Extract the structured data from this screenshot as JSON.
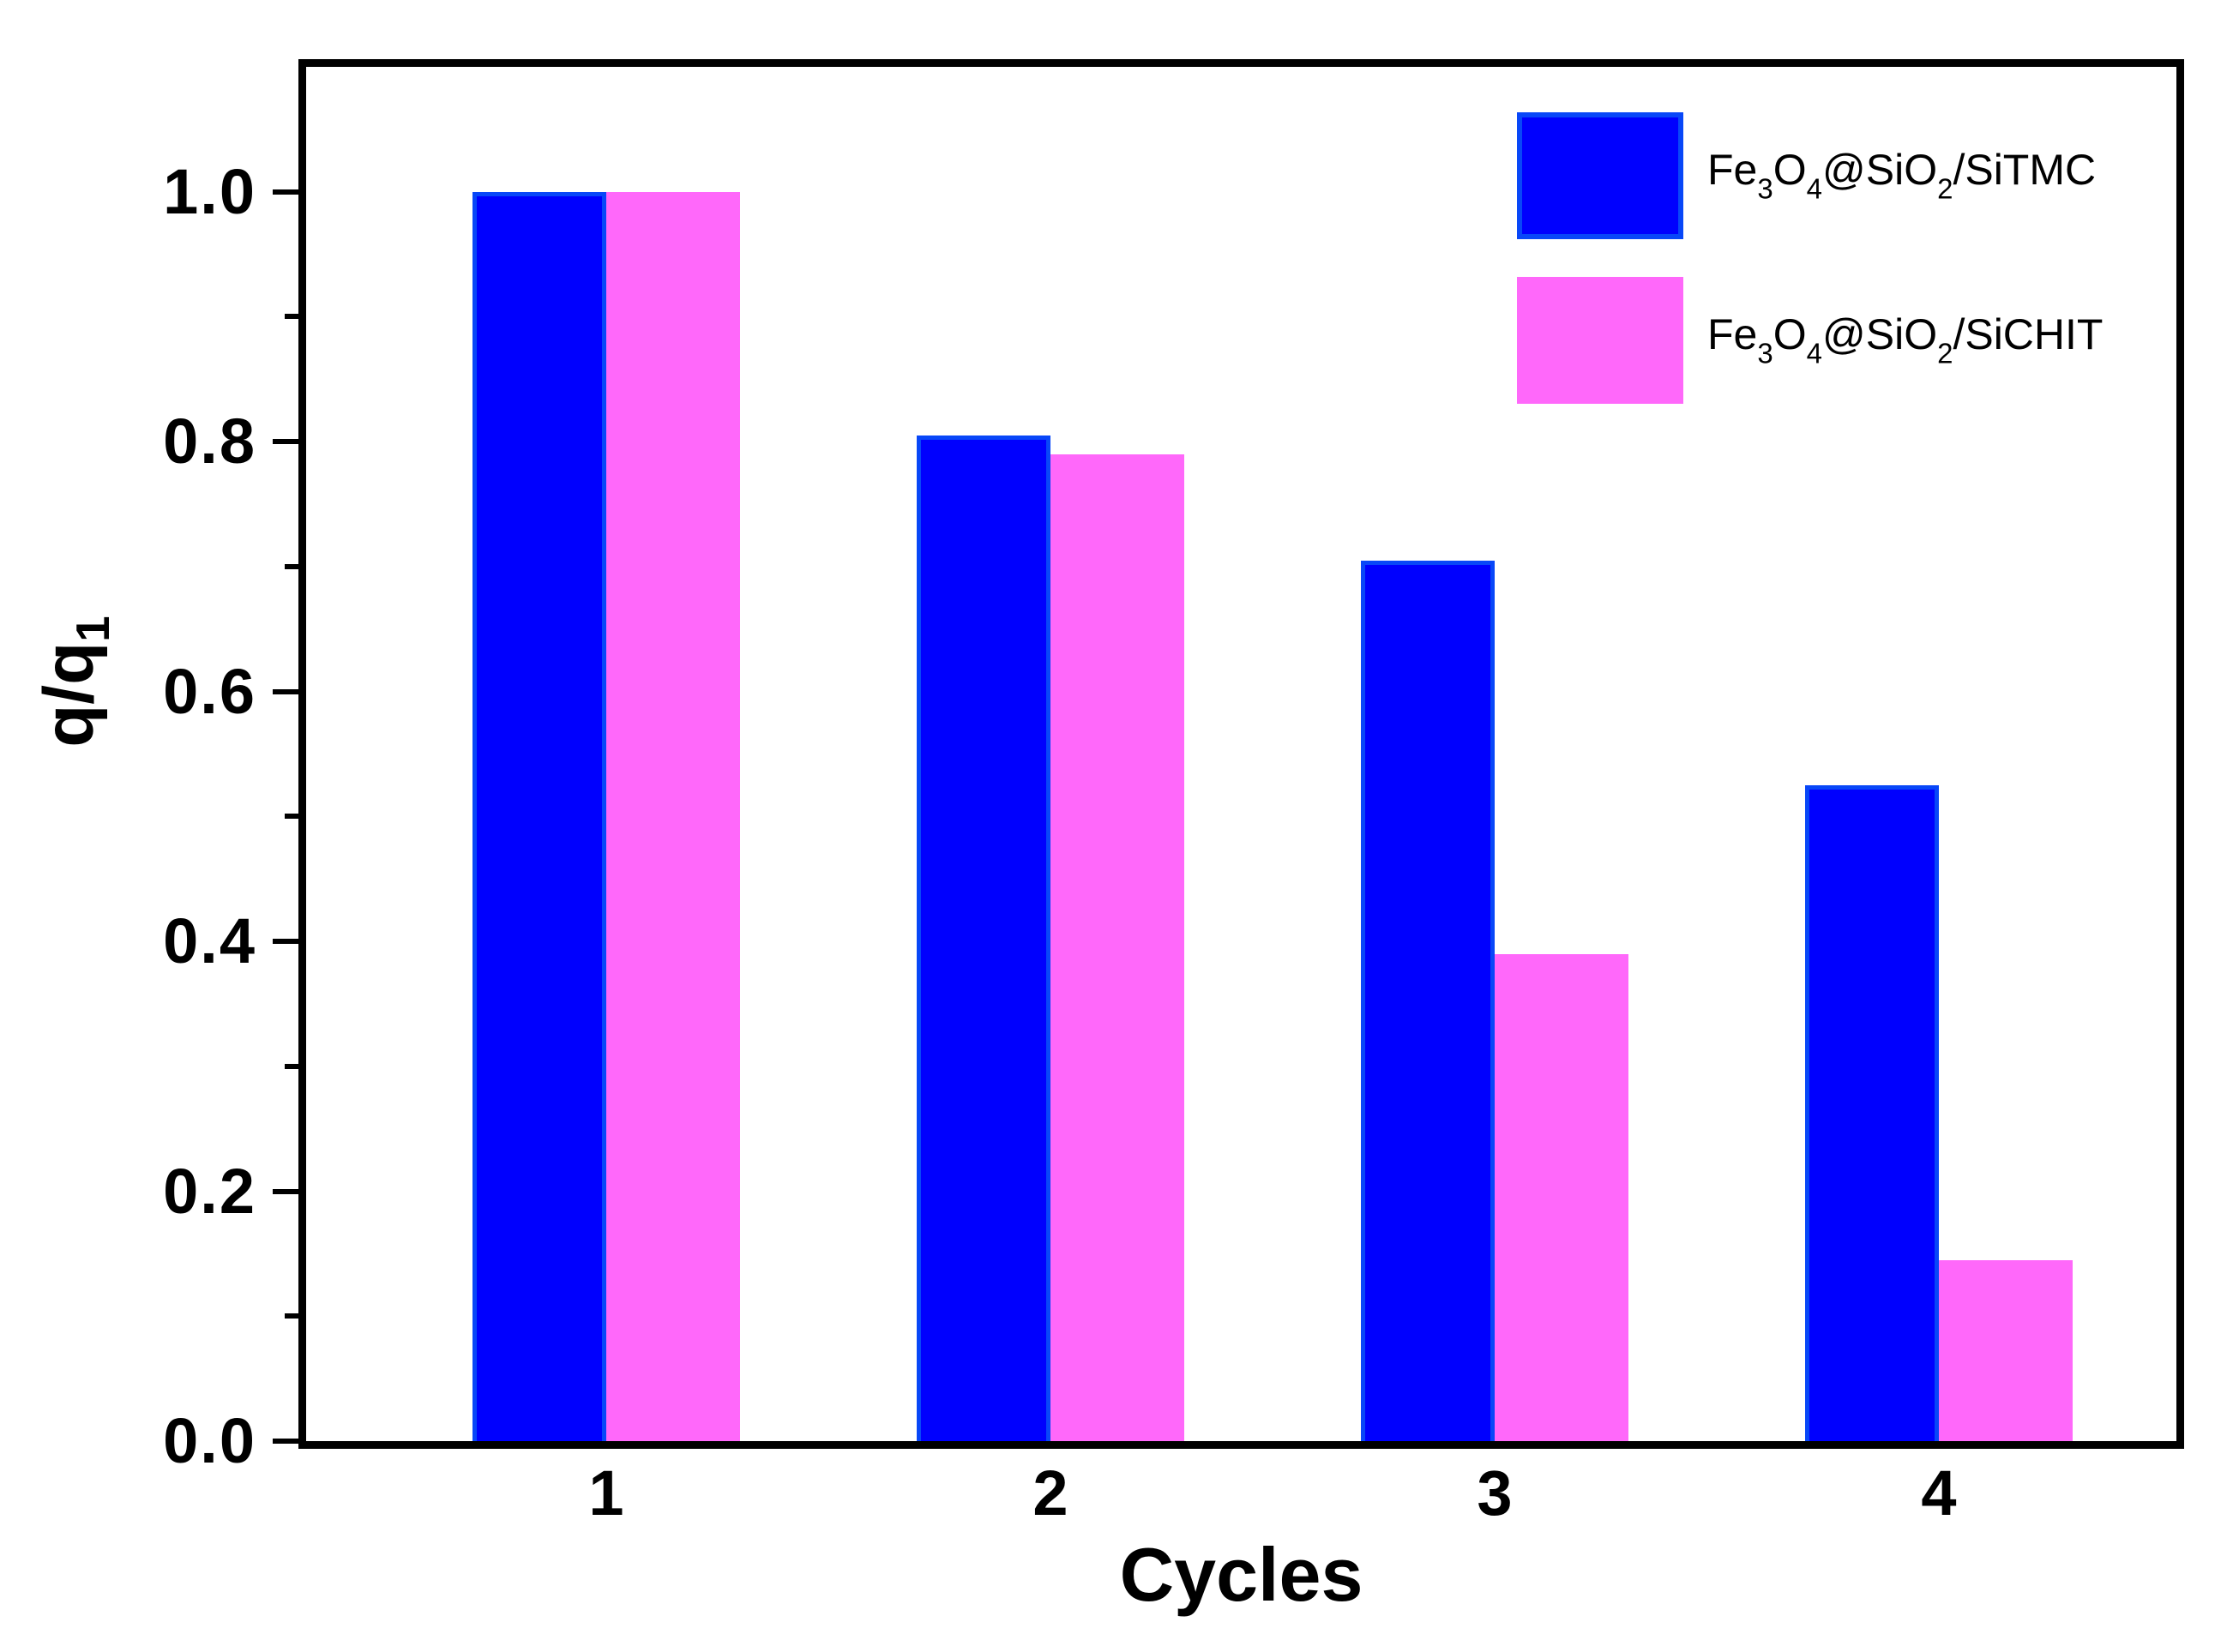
{
  "chart_data": {
    "type": "bar",
    "title": "",
    "xlabel": "Cycles",
    "ylabel": "q/q1",
    "ylabel_parts": [
      {
        "t": "q/q"
      },
      {
        "t": "1",
        "sub": true
      }
    ],
    "categories": [
      "1",
      "2",
      "3",
      "4"
    ],
    "series": [
      {
        "name": "Fe3O4@SiO2/SiTMC",
        "label_parts": [
          {
            "t": "Fe"
          },
          {
            "t": "3",
            "sub": true
          },
          {
            "t": "O"
          },
          {
            "t": "4",
            "sub": true
          },
          {
            "t": "@SiO"
          },
          {
            "t": "2",
            "sub": true
          },
          {
            "t": "/SiTMC"
          }
        ],
        "color": "#0000FE",
        "border_color": "#0847F8",
        "values": [
          1.0,
          0.805,
          0.705,
          0.525
        ]
      },
      {
        "name": "Fe3O4@SiO2/SiCHIT",
        "label_parts": [
          {
            "t": "Fe"
          },
          {
            "t": "3",
            "sub": true
          },
          {
            "t": "O"
          },
          {
            "t": "4",
            "sub": true
          },
          {
            "t": "@SiO"
          },
          {
            "t": "2",
            "sub": true
          },
          {
            "t": "/SiCHIT"
          }
        ],
        "color": "#FF68FA",
        "border_color": "#FF68FA",
        "values": [
          1.0,
          0.79,
          0.39,
          0.145
        ]
      }
    ],
    "ylim": [
      0,
      1.1
    ],
    "yticks_major": [
      0.0,
      0.2,
      0.4,
      0.6,
      0.8,
      1.0
    ],
    "ytick_labels": [
      "0.0",
      "0.2",
      "0.4",
      "0.6",
      "0.8",
      "1.0"
    ],
    "yticks_minor": [
      0.1,
      0.3,
      0.5,
      0.7,
      0.9
    ],
    "grid": false,
    "legend_position": "top-right",
    "axis_color": "#000000",
    "background_color": "#FFFFFF"
  }
}
